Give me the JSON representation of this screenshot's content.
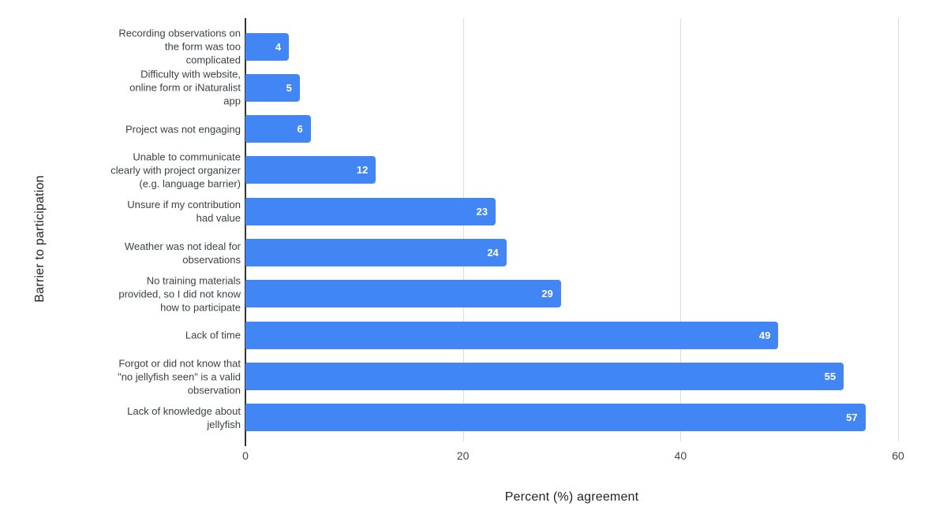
{
  "chart_data": {
    "type": "bar",
    "orientation": "horizontal",
    "title": "",
    "xlabel": "Percent (%) agreement",
    "ylabel": "Barrier to participation",
    "xlim": [
      0,
      60
    ],
    "xticks": [
      0,
      20,
      40,
      60
    ],
    "grid": "vertical-gridlines-on",
    "legend": "none",
    "bar_color": "#4285f4",
    "value_label_color": "#ffffff",
    "categories": [
      "Recording observations on\nthe form was too\ncomplicated",
      "Difficulty with website,\nonline form or iNaturalist\napp",
      "Project was not engaging",
      "Unable to communicate\nclearly with project organizer\n(e.g. language barrier)",
      "Unsure if my contribution\nhad value",
      "Weather was not ideal for\nobservations",
      "No training materials\nprovided, so I did not know\nhow to participate",
      "Lack of time",
      "Forgot or did not know that\n\"no jellyfish seen\" is a valid\nobservation",
      "Lack of knowledge about\njellyfish"
    ],
    "values": [
      4,
      5,
      6,
      12,
      23,
      24,
      29,
      49,
      55,
      57
    ]
  }
}
